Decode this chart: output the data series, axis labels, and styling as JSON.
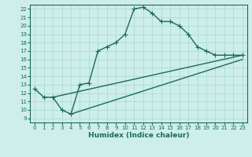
{
  "title": "",
  "xlabel": "Humidex (Indice chaleur)",
  "xlim": [
    -0.5,
    23.5
  ],
  "ylim": [
    8.5,
    22.5
  ],
  "xticks": [
    0,
    1,
    2,
    3,
    4,
    5,
    6,
    7,
    8,
    9,
    10,
    11,
    12,
    13,
    14,
    15,
    16,
    17,
    18,
    19,
    20,
    21,
    22,
    23
  ],
  "yticks": [
    9,
    10,
    11,
    12,
    13,
    14,
    15,
    16,
    17,
    18,
    19,
    20,
    21,
    22
  ],
  "bg_color": "#cdeee9",
  "line_color": "#1a6b5a",
  "grid_color": "#a8d8cf",
  "line1_x": [
    0,
    1,
    2,
    3,
    4,
    5,
    6,
    7,
    8,
    9,
    10,
    11,
    12,
    13,
    14,
    15,
    16,
    17,
    18,
    19,
    20,
    21,
    22,
    23
  ],
  "line1_y": [
    12.5,
    11.5,
    11.5,
    10.0,
    9.5,
    13.0,
    13.2,
    17.0,
    17.5,
    18.0,
    19.0,
    22.0,
    22.2,
    21.5,
    20.5,
    20.5,
    20.0,
    19.0,
    17.5,
    17.0,
    16.5,
    16.5,
    16.5,
    16.5
  ],
  "line2_x": [
    2,
    23
  ],
  "line2_y": [
    11.5,
    16.5
  ],
  "line3_x": [
    4,
    23
  ],
  "line3_y": [
    9.5,
    16.0
  ],
  "marker": "+",
  "markersize": 4,
  "linewidth": 1.0,
  "tick_fontsize": 5.0,
  "xlabel_fontsize": 6.5
}
